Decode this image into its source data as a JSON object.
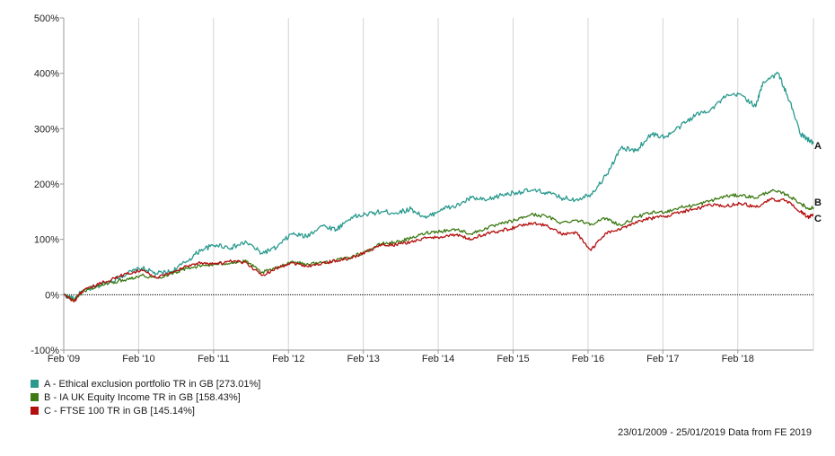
{
  "chart_data": {
    "type": "line",
    "xlabel": "",
    "ylabel": "",
    "x_tick_labels": [
      "Feb '09",
      "Feb '10",
      "Feb '11",
      "Feb '12",
      "Feb '13",
      "Feb '14",
      "Feb '15",
      "Feb '16",
      "Feb '17",
      "Feb '18"
    ],
    "x_range": [
      2009.06,
      2019.07
    ],
    "y_tick_labels": [
      "500%",
      "400%",
      "300%",
      "200%",
      "100%",
      "0%",
      "-100%"
    ],
    "ylim": [
      -100,
      500
    ],
    "y_ticks": [
      500,
      400,
      300,
      200,
      100,
      0,
      -100
    ],
    "zero_line": true,
    "grid": "vertical",
    "series": [
      {
        "name": "A - Ethical exclusion portfolio TR in GB [273.01%]",
        "end_label": "A",
        "color": "#2a9a8e",
        "x": [
          2009.06,
          2009.2,
          2009.3,
          2009.5,
          2009.7,
          2009.9,
          2010.1,
          2010.3,
          2010.5,
          2010.7,
          2010.9,
          2011.1,
          2011.3,
          2011.5,
          2011.7,
          2011.9,
          2012.1,
          2012.3,
          2012.5,
          2012.7,
          2012.9,
          2013.1,
          2013.3,
          2013.5,
          2013.7,
          2013.9,
          2014.1,
          2014.3,
          2014.5,
          2014.7,
          2014.9,
          2015.1,
          2015.3,
          2015.5,
          2015.7,
          2015.9,
          2016.1,
          2016.3,
          2016.5,
          2016.7,
          2016.9,
          2017.1,
          2017.3,
          2017.5,
          2017.7,
          2017.9,
          2018.1,
          2018.3,
          2018.4,
          2018.6,
          2018.75,
          2018.9,
          2019.0,
          2019.07
        ],
        "values": [
          0,
          -8,
          5,
          15,
          25,
          38,
          48,
          38,
          42,
          60,
          82,
          90,
          85,
          95,
          75,
          85,
          110,
          105,
          125,
          118,
          140,
          145,
          150,
          148,
          155,
          138,
          155,
          160,
          175,
          170,
          180,
          185,
          188,
          185,
          175,
          172,
          182,
          215,
          265,
          260,
          290,
          285,
          305,
          325,
          335,
          358,
          362,
          340,
          385,
          400,
          350,
          290,
          280,
          273
        ]
      },
      {
        "name": "B - IA UK Equity Income TR in GB [158.43%]",
        "end_label": "B",
        "color": "#3d7a14",
        "x": [
          2009.06,
          2009.2,
          2009.3,
          2009.5,
          2009.7,
          2009.9,
          2010.1,
          2010.3,
          2010.5,
          2010.7,
          2010.9,
          2011.1,
          2011.3,
          2011.5,
          2011.7,
          2011.9,
          2012.1,
          2012.3,
          2012.5,
          2012.7,
          2012.9,
          2013.1,
          2013.3,
          2013.5,
          2013.7,
          2013.9,
          2014.1,
          2014.3,
          2014.5,
          2014.7,
          2014.9,
          2015.1,
          2015.3,
          2015.5,
          2015.7,
          2015.9,
          2016.1,
          2016.3,
          2016.5,
          2016.7,
          2016.9,
          2017.1,
          2017.3,
          2017.5,
          2017.7,
          2017.9,
          2018.1,
          2018.3,
          2018.5,
          2018.7,
          2018.9,
          2019.0,
          2019.07
        ],
        "values": [
          0,
          -10,
          5,
          15,
          22,
          28,
          35,
          30,
          38,
          48,
          52,
          55,
          58,
          60,
          40,
          48,
          60,
          55,
          58,
          62,
          68,
          78,
          92,
          95,
          102,
          112,
          115,
          118,
          110,
          120,
          128,
          135,
          145,
          142,
          130,
          135,
          128,
          138,
          125,
          140,
          148,
          150,
          158,
          162,
          170,
          178,
          180,
          175,
          188,
          182,
          165,
          155,
          158
        ]
      },
      {
        "name": "C - FTSE 100 TR in GB [145.14%]",
        "end_label": "C",
        "color": "#b30f0f",
        "x": [
          2009.06,
          2009.2,
          2009.3,
          2009.5,
          2009.7,
          2009.9,
          2010.1,
          2010.3,
          2010.5,
          2010.7,
          2010.9,
          2011.1,
          2011.3,
          2011.5,
          2011.7,
          2011.9,
          2012.1,
          2012.3,
          2012.5,
          2012.7,
          2012.9,
          2013.1,
          2013.3,
          2013.5,
          2013.7,
          2013.9,
          2014.1,
          2014.3,
          2014.5,
          2014.7,
          2014.9,
          2015.1,
          2015.3,
          2015.5,
          2015.7,
          2015.9,
          2016.1,
          2016.3,
          2016.5,
          2016.7,
          2016.9,
          2017.1,
          2017.3,
          2017.5,
          2017.7,
          2017.9,
          2018.1,
          2018.3,
          2018.5,
          2018.7,
          2018.9,
          2019.0,
          2019.07
        ],
        "values": [
          0,
          -12,
          5,
          18,
          28,
          38,
          45,
          30,
          40,
          52,
          58,
          56,
          60,
          58,
          35,
          48,
          58,
          52,
          56,
          62,
          66,
          78,
          90,
          90,
          96,
          102,
          105,
          108,
          100,
          110,
          116,
          122,
          130,
          125,
          110,
          112,
          80,
          112,
          118,
          132,
          138,
          142,
          150,
          155,
          162,
          160,
          165,
          158,
          172,
          170,
          150,
          140,
          145
        ]
      }
    ],
    "source_note": "23/01/2009 - 25/01/2019 Data from FE 2019"
  }
}
